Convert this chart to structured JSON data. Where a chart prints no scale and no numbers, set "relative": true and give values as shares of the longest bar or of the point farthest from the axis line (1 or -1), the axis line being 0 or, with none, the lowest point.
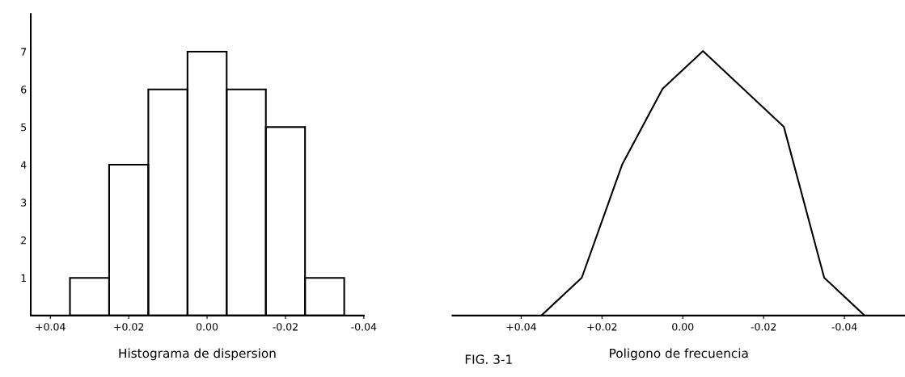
{
  "chart_data": [
    {
      "type": "histogram",
      "xlabel": "Histograma de dispersion",
      "bins": [
        0.035,
        0.025,
        0.015,
        0.005,
        -0.005,
        -0.015,
        -0.025,
        -0.035
      ],
      "values": [
        1,
        4,
        6,
        7,
        6,
        5,
        1
      ],
      "color": "#000000",
      "xlim": [
        0.045,
        -0.04
      ],
      "xticks": [
        {
          "value": 0.04,
          "label": "+0.04"
        },
        {
          "value": 0.02,
          "label": "+0.02"
        },
        {
          "value": 0,
          "label": "0.00"
        },
        {
          "value": -0.02,
          "label": "-0.02"
        },
        {
          "value": -0.04,
          "label": "-0.04"
        }
      ],
      "ylim": [
        0,
        8
      ],
      "yticks": [
        1,
        2,
        3,
        4,
        5,
        6,
        7
      ],
      "grid": false,
      "annotations": [
        "FIG. 3-1"
      ]
    },
    {
      "type": "line",
      "xlabel": "Poligono de frecuencia",
      "x": [
        0.035,
        0.025,
        0.015,
        0.005,
        -0.005,
        -0.025,
        -0.035,
        -0.045
      ],
      "values": [
        0,
        0.143,
        0.571,
        0.857,
        1,
        0.714,
        0.143,
        0
      ],
      "relative": true,
      "color": "#000000",
      "xlim": [
        0.057,
        -0.055
      ],
      "xticks": [
        {
          "value": 0.04,
          "label": "+0.04"
        },
        {
          "value": 0.02,
          "label": "+0.02"
        },
        {
          "value": 0,
          "label": "0.00"
        },
        {
          "value": -0.02,
          "label": "-0.02"
        },
        {
          "value": -0.04,
          "label": "-0.04"
        }
      ],
      "tick_labels": "x",
      "grid": false,
      "marker": "none",
      "line_style": "solid"
    }
  ]
}
